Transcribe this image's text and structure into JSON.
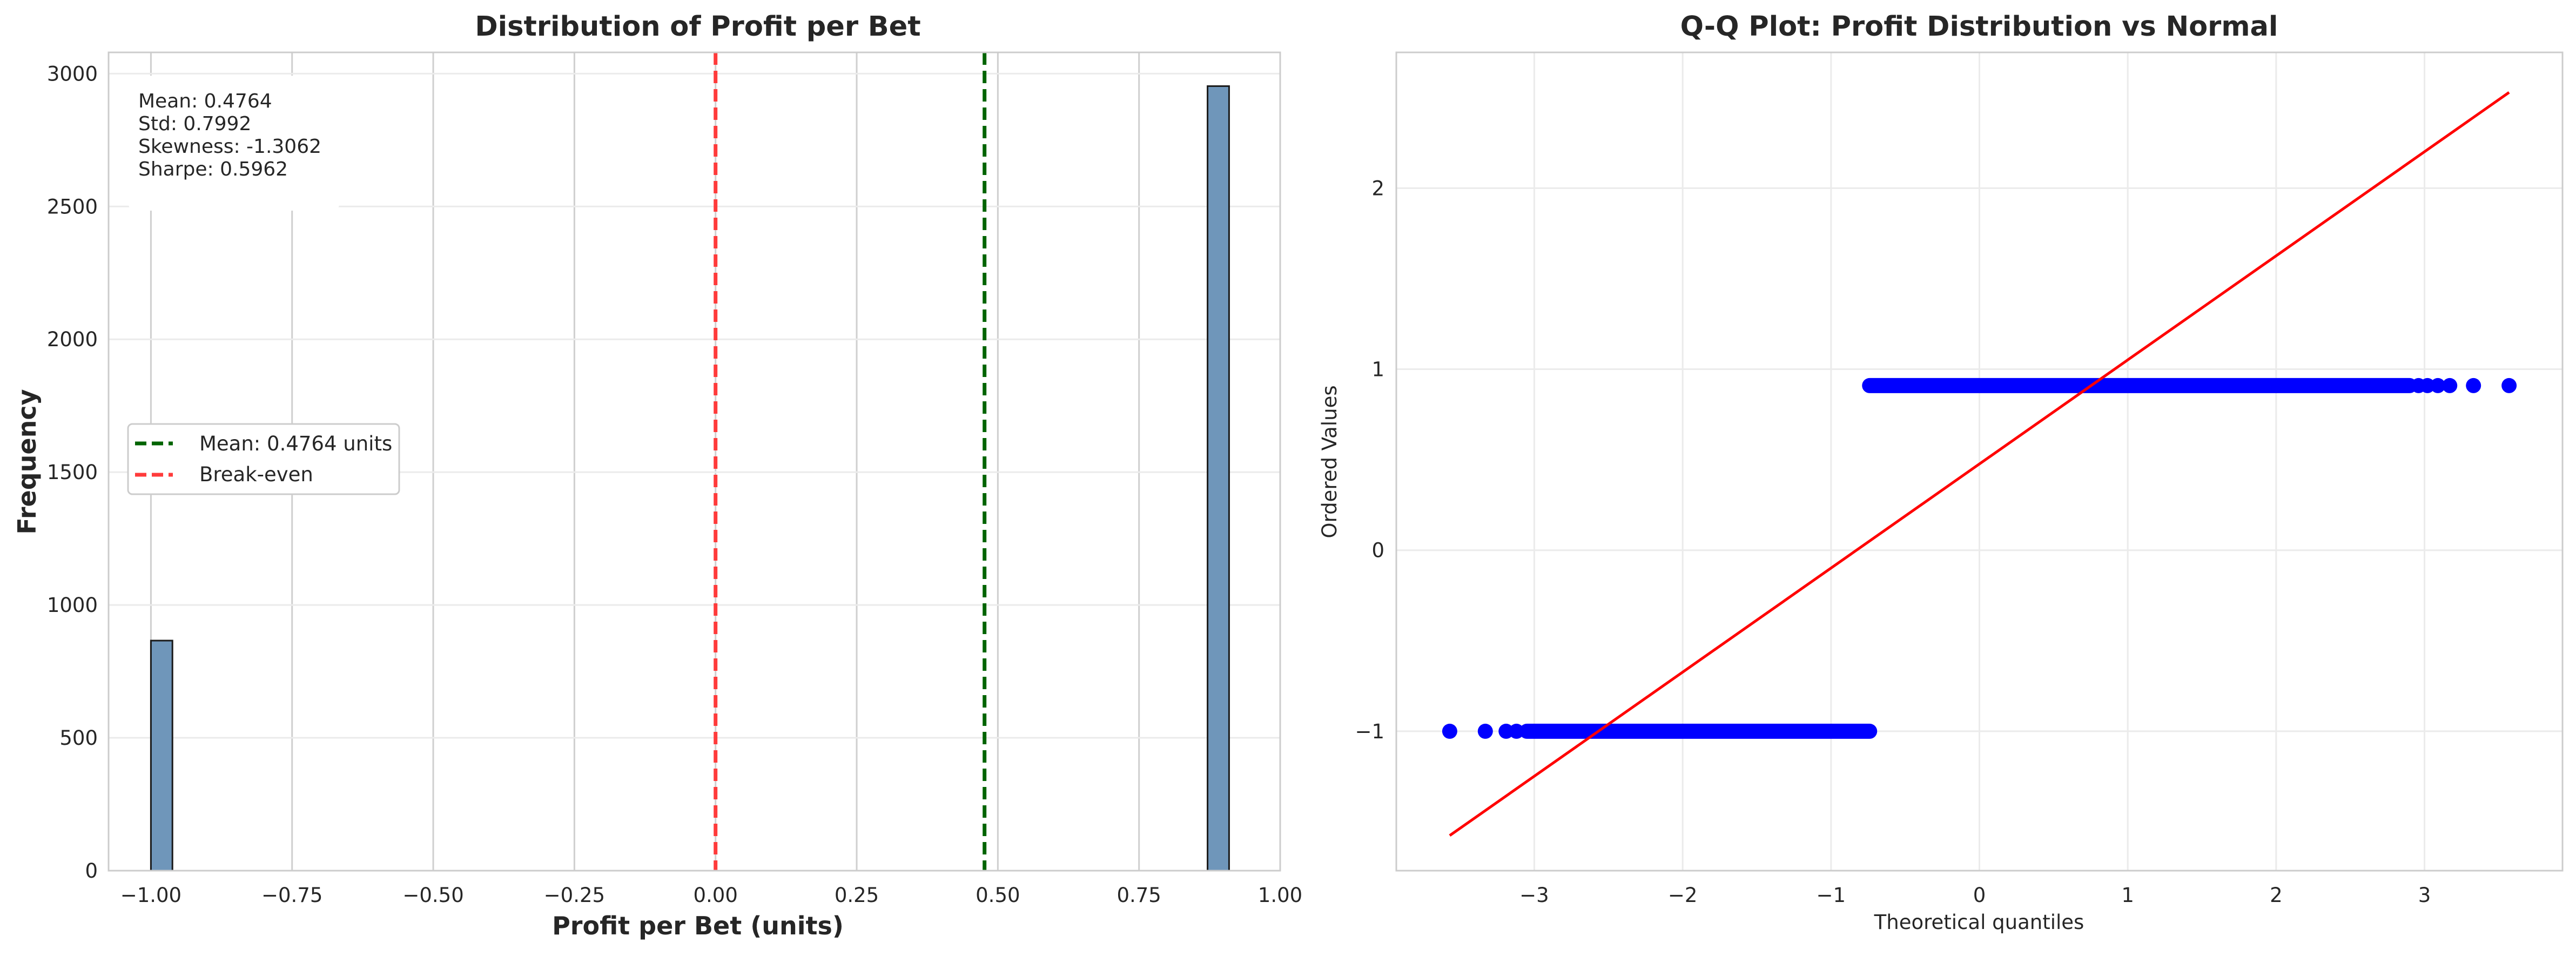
{
  "chart_data": [
    {
      "type": "bar",
      "title": "Distribution of Profit per Bet",
      "xlabel": "Profit per Bet (units)",
      "ylabel": "Frequency",
      "xlim": [
        -1.075,
        1.0
      ],
      "ylim": [
        0,
        3080
      ],
      "grid": true,
      "x_ticks": [
        -1.0,
        -0.75,
        -0.5,
        -0.25,
        0.0,
        0.25,
        0.5,
        0.75,
        1.0
      ],
      "x_tick_labels": [
        "−1.00",
        "−0.75",
        "−0.50",
        "−0.25",
        "0.00",
        "0.25",
        "0.50",
        "0.75",
        "1.00"
      ],
      "y_ticks": [
        0,
        500,
        1000,
        1500,
        2000,
        2500,
        3000
      ],
      "y_tick_labels": [
        "0",
        "500",
        "1000",
        "1500",
        "2000",
        "2500",
        "3000"
      ],
      "bins": [
        {
          "x0": -1.0,
          "x1": -0.9619,
          "count": 866
        },
        {
          "x0": 0.8714,
          "x1": 0.9095,
          "count": 2953
        }
      ],
      "bar_color": "#6f96ba",
      "vlines": [
        {
          "x": 0.4764,
          "color": "#006400",
          "label": "Mean: 0.4764 units"
        },
        {
          "x": 0.0,
          "color": "#ff3b3b",
          "label": "Break-even"
        }
      ],
      "legend_position": "center-left",
      "stats_box": [
        "Mean: 0.4764",
        "Std: 0.7992",
        "Skewness: -1.3062",
        "Sharpe: 0.5962"
      ]
    },
    {
      "type": "scatter",
      "title": "Q-Q Plot: Profit Distribution vs Normal",
      "xlabel": "Theoretical quantiles",
      "ylabel": "Ordered Values",
      "xlim": [
        -3.93,
        3.93
      ],
      "ylim": [
        -1.77,
        2.75
      ],
      "grid": true,
      "x_ticks": [
        -3,
        -2,
        -1,
        0,
        1,
        2,
        3
      ],
      "x_tick_labels": [
        "−3",
        "−2",
        "−1",
        "0",
        "1",
        "2",
        "3"
      ],
      "y_ticks": [
        -1,
        0,
        1,
        2
      ],
      "y_tick_labels": [
        "−1",
        "0",
        "1",
        "2"
      ],
      "point_color": "#0000ff",
      "groups": [
        {
          "y": -1.0,
          "x_dense_from": -3.05,
          "x_dense_to": -0.74,
          "x_sparse": [
            -3.57,
            -3.33,
            -3.19,
            -3.12
          ]
        },
        {
          "y": 0.9095,
          "x_dense_from": -0.74,
          "x_dense_to": 2.9,
          "x_sparse": [
            2.96,
            3.02,
            3.09,
            3.17,
            3.33,
            3.57
          ]
        }
      ],
      "fit_line": {
        "x": [
          -3.57,
          3.57
        ],
        "y": [
          -1.576,
          2.529
        ],
        "color": "#ff0000"
      }
    }
  ]
}
